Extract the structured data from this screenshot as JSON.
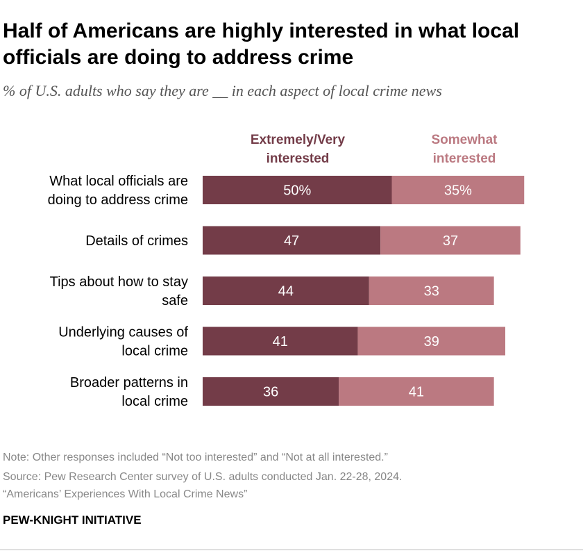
{
  "header": {
    "title": "Half of Americans are highly interested in what local officials are doing to address crime",
    "subtitle": "% of U.S. adults who say they are __ in each aspect of local crime news"
  },
  "colors": {
    "extremely": "#733c48",
    "somewhat": "#bb7981"
  },
  "chart_data": {
    "type": "bar",
    "orientation": "horizontal",
    "stacked": true,
    "title": "Half of Americans are highly interested in what local officials are doing to address crime",
    "subtitle": "% of U.S. adults who say they are __ in each aspect of local crime news",
    "categories": [
      [
        "What local officials are",
        "doing to address crime"
      ],
      [
        "Details of crimes"
      ],
      [
        "Tips about how to stay",
        "safe"
      ],
      [
        "Underlying causes of",
        "local crime"
      ],
      [
        "Broader patterns in",
        "local crime"
      ]
    ],
    "series": [
      {
        "name": "Extremely/Very interested",
        "legend_lines": [
          "Extremely/Very",
          "interested"
        ],
        "values": [
          50,
          47,
          44,
          41,
          36
        ],
        "labels": [
          "50%",
          "47",
          "44",
          "41",
          "36"
        ]
      },
      {
        "name": "Somewhat interested",
        "legend_lines": [
          "Somewhat",
          "interested"
        ],
        "values": [
          35,
          37,
          33,
          39,
          41
        ],
        "labels": [
          "35%",
          "37",
          "33",
          "39",
          "41"
        ]
      }
    ],
    "xlim": [
      0,
      100
    ],
    "xlabel": "",
    "ylabel": "",
    "grid": false
  },
  "footer": {
    "note": "Note: Other responses included “Not too interested” and “Not at all interested.”",
    "source": "Source: Pew Research Center survey of U.S. adults conducted Jan. 22-28, 2024.",
    "report": "“Americans’ Experiences With Local Crime News”",
    "brand": "PEW-KNIGHT INITIATIVE"
  }
}
